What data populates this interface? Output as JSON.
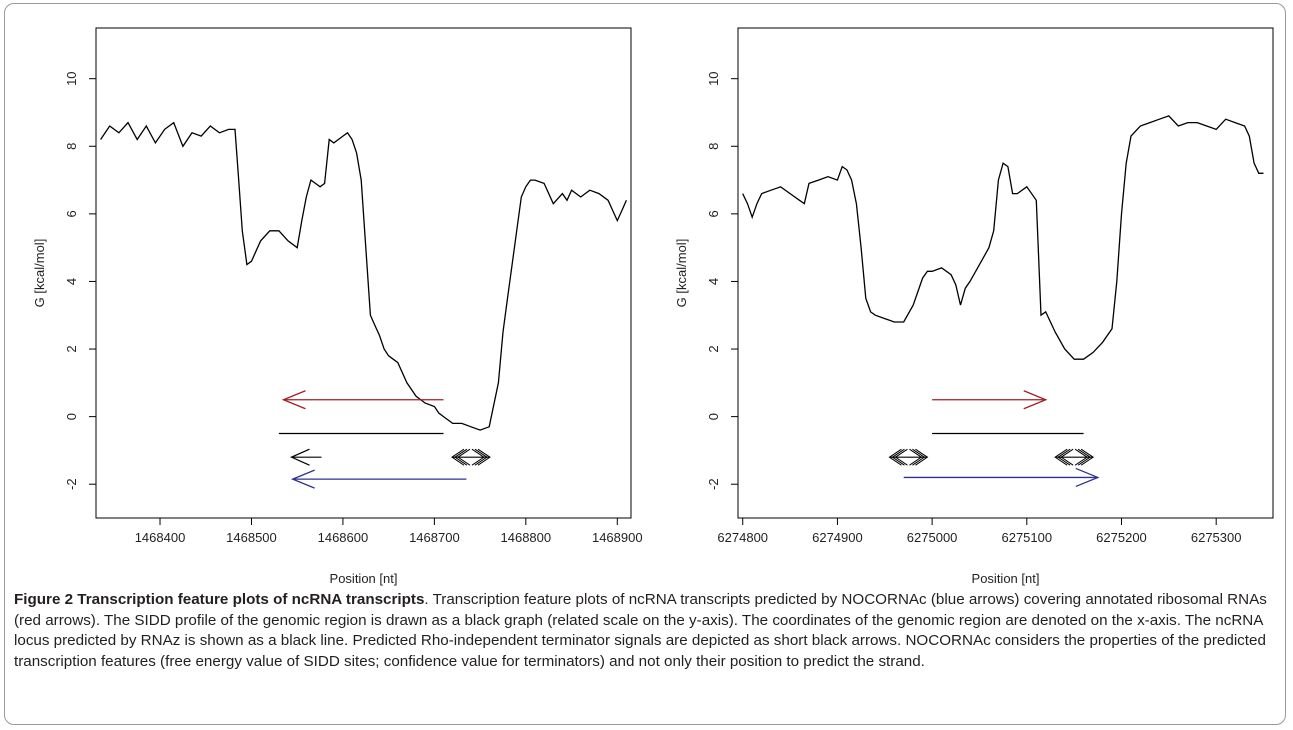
{
  "figure": {
    "caption_bold": "Figure 2 Transcription feature plots of ncRNA transcripts",
    "caption_text": ". Transcription feature plots of ncRNA transcripts predicted by NOCORNAc (blue arrows) covering annotated ribosomal RNAs (red arrows). The SIDD profile of the genomic region is drawn as a black graph (related scale on the y-axis). The coordinates of the genomic region are denoted on the x-axis. The ncRNA locus predicted by RNAz is shown as a black line. Predicted Rho-independent terminator signals are depicted as short black arrows. NOCORNAc considers the properties of the predicted transcription features (free energy value of SIDD sites; confidence value for terminators) and not only their position to predict the strand."
  },
  "colors": {
    "sidd": "#000000",
    "rrna": "#a31f24",
    "nocornac": "#2e3192",
    "rnaz": "#000000",
    "terminator": "#000000"
  },
  "chart_data": [
    {
      "type": "line",
      "xlabel": "Position [nt]",
      "ylabel": "G [kcal/mol]",
      "xlim": [
        1468330,
        1468915
      ],
      "ylim": [
        -3,
        11.5
      ],
      "xticks": [
        1468400,
        1468500,
        1468600,
        1468700,
        1468800,
        1468900
      ],
      "yticks": [
        -2,
        0,
        2,
        4,
        6,
        8,
        10
      ],
      "sidd_profile": {
        "x": [
          1468335,
          1468345,
          1468355,
          1468365,
          1468375,
          1468385,
          1468395,
          1468405,
          1468415,
          1468425,
          1468435,
          1468445,
          1468455,
          1468465,
          1468475,
          1468482,
          1468486,
          1468490,
          1468495,
          1468500,
          1468510,
          1468520,
          1468530,
          1468540,
          1468550,
          1468555,
          1468560,
          1468565,
          1468570,
          1468575,
          1468580,
          1468585,
          1468590,
          1468595,
          1468600,
          1468605,
          1468610,
          1468615,
          1468620,
          1468625,
          1468630,
          1468635,
          1468640,
          1468645,
          1468650,
          1468655,
          1468660,
          1468670,
          1468680,
          1468690,
          1468700,
          1468705,
          1468710,
          1468715,
          1468720,
          1468730,
          1468740,
          1468750,
          1468760,
          1468770,
          1468775,
          1468780,
          1468785,
          1468790,
          1468795,
          1468800,
          1468805,
          1468810,
          1468820,
          1468830,
          1468840,
          1468845,
          1468850,
          1468860,
          1468870,
          1468880,
          1468890,
          1468895,
          1468900,
          1468905,
          1468910
        ],
        "y": [
          8.2,
          8.6,
          8.4,
          8.7,
          8.2,
          8.6,
          8.1,
          8.5,
          8.7,
          8.0,
          8.4,
          8.3,
          8.6,
          8.4,
          8.5,
          8.5,
          7.0,
          5.5,
          4.5,
          4.6,
          5.2,
          5.5,
          5.5,
          5.2,
          5.0,
          5.8,
          6.5,
          7.0,
          6.9,
          6.8,
          6.9,
          8.2,
          8.1,
          8.2,
          8.3,
          8.4,
          8.2,
          7.8,
          7.0,
          5.0,
          3.0,
          2.7,
          2.4,
          2.0,
          1.8,
          1.7,
          1.6,
          1.0,
          0.6,
          0.4,
          0.3,
          0.1,
          0.0,
          -0.1,
          -0.2,
          -0.2,
          -0.3,
          -0.4,
          -0.3,
          1.0,
          2.5,
          3.5,
          4.5,
          5.5,
          6.5,
          6.8,
          7.0,
          7.0,
          6.9,
          6.3,
          6.6,
          6.4,
          6.7,
          6.5,
          6.7,
          6.6,
          6.4,
          6.1,
          5.8,
          6.1,
          6.4
        ]
      },
      "annotated_rrna": {
        "from": 1468710,
        "to": 1468535,
        "y": 0.5
      },
      "rnaz_locus": {
        "from": 1468530,
        "to": 1468710,
        "y": -0.5
      },
      "nocornac_transcript": {
        "from": 1468735,
        "to": 1468545,
        "y": -1.85
      },
      "terminators": [
        {
          "at": 1468570,
          "direction": "left",
          "y": -1.2
        },
        {
          "at": 1468740,
          "direction": "both",
          "y": -1.2
        }
      ]
    },
    {
      "type": "line",
      "xlabel": "Position [nt]",
      "ylabel": "G [kcal/mol]",
      "xlim": [
        6274795,
        6275360
      ],
      "ylim": [
        -3,
        11.5
      ],
      "xticks": [
        6274800,
        6274900,
        6275000,
        6275100,
        6275200,
        6275300
      ],
      "yticks": [
        -2,
        0,
        2,
        4,
        6,
        8,
        10
      ],
      "sidd_profile": {
        "x": [
          6274800,
          6274805,
          6274810,
          6274815,
          6274820,
          6274830,
          6274840,
          6274850,
          6274860,
          6274865,
          6274870,
          6274880,
          6274890,
          6274900,
          6274905,
          6274910,
          6274915,
          6274920,
          6274925,
          6274930,
          6274935,
          6274940,
          6274950,
          6274960,
          6274970,
          6274980,
          6274990,
          6274995,
          6275000,
          6275010,
          6275020,
          6275025,
          6275030,
          6275035,
          6275040,
          6275050,
          6275060,
          6275065,
          6275070,
          6275075,
          6275080,
          6275085,
          6275090,
          6275100,
          6275110,
          6275115,
          6275120,
          6275130,
          6275140,
          6275150,
          6275160,
          6275170,
          6275180,
          6275190,
          6275195,
          6275200,
          6275205,
          6275210,
          6275220,
          6275230,
          6275240,
          6275250,
          6275260,
          6275270,
          6275280,
          6275290,
          6275300,
          6275310,
          6275320,
          6275330,
          6275335,
          6275340,
          6275345,
          6275350
        ],
        "y": [
          6.6,
          6.3,
          5.9,
          6.3,
          6.6,
          6.7,
          6.8,
          6.6,
          6.4,
          6.3,
          6.9,
          7.0,
          7.1,
          7.0,
          7.4,
          7.3,
          7.0,
          6.3,
          5.0,
          3.5,
          3.1,
          3.0,
          2.9,
          2.8,
          2.8,
          3.3,
          4.1,
          4.3,
          4.3,
          4.4,
          4.2,
          3.9,
          3.3,
          3.8,
          4.0,
          4.5,
          5.0,
          5.5,
          7.0,
          7.5,
          7.4,
          6.6,
          6.6,
          6.8,
          6.4,
          3.0,
          3.1,
          2.5,
          2.0,
          1.7,
          1.7,
          1.9,
          2.2,
          2.6,
          4.0,
          6.0,
          7.5,
          8.3,
          8.6,
          8.7,
          8.8,
          8.9,
          8.6,
          8.7,
          8.7,
          8.6,
          8.5,
          8.8,
          8.7,
          8.6,
          8.3,
          7.5,
          7.2,
          7.2
        ]
      },
      "annotated_rrna": {
        "from": 6275000,
        "to": 6275120,
        "y": 0.5
      },
      "rnaz_locus": {
        "from": 6275000,
        "to": 6275160,
        "y": -0.5
      },
      "nocornac_transcript": {
        "from": 6274970,
        "to": 6275175,
        "y": -1.8
      },
      "terminators": [
        {
          "at": 6274975,
          "direction": "both",
          "y": -1.2
        },
        {
          "at": 6275150,
          "direction": "both",
          "y": -1.2
        }
      ]
    }
  ]
}
